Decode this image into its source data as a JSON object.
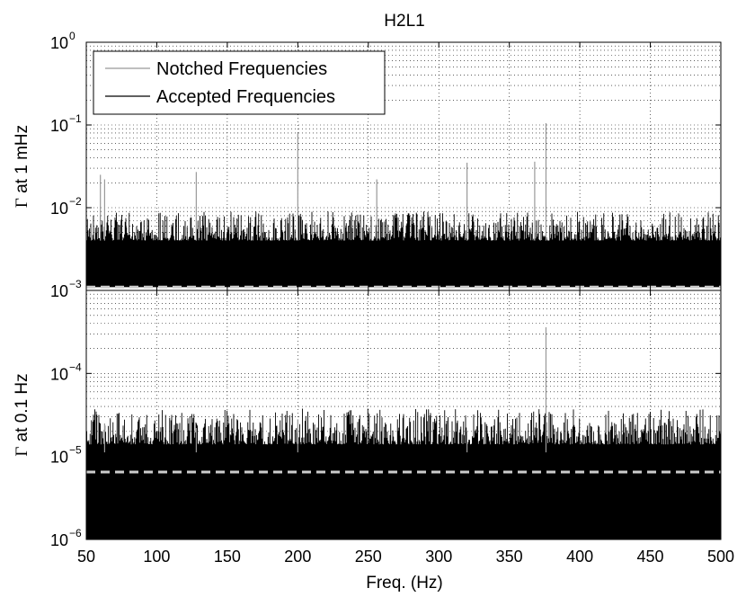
{
  "chart_data": {
    "type": "line",
    "title": "H2L1",
    "xlabel": "Freq. (Hz)",
    "xlim": [
      50,
      500
    ],
    "x_ticks": [
      "50",
      "100",
      "150",
      "200",
      "250",
      "300",
      "350",
      "400",
      "450",
      "500"
    ],
    "legend": {
      "position": "top-left",
      "entries": [
        {
          "label": "Notched Frequencies",
          "color": "#999999"
        },
        {
          "label": "Accepted Frequencies",
          "color": "#000000"
        }
      ]
    },
    "grid": true,
    "panels": [
      {
        "ylabel_symbol": "Γ",
        "ylabel": " at 1 mHz",
        "yscale": "log",
        "ylim": [
          0.001,
          1
        ],
        "y_ticks": [
          {
            "base": "10",
            "exp": "0"
          },
          {
            "base": "10",
            "exp": "−1"
          },
          {
            "base": "10",
            "exp": "−2"
          },
          {
            "base": "10",
            "exp": "−3"
          }
        ],
        "noise_band": {
          "low": 0.0011,
          "typical_high": 0.004,
          "envelope_max": 0.009
        },
        "threshold_dashed": 0.0011,
        "notched_spikes": [
          {
            "x": 60,
            "y": 0.025
          },
          {
            "x": 63,
            "y": 0.022
          },
          {
            "x": 128,
            "y": 0.027
          },
          {
            "x": 200,
            "y": 0.08
          },
          {
            "x": 256,
            "y": 0.022
          },
          {
            "x": 320,
            "y": 0.035
          },
          {
            "x": 368,
            "y": 0.036
          },
          {
            "x": 376,
            "y": 0.105
          }
        ]
      },
      {
        "ylabel_symbol": "Γ",
        "ylabel": " at 0.1 Hz",
        "yscale": "log",
        "ylim": [
          1e-06,
          0.001
        ],
        "y_ticks": [
          {
            "base": "10",
            "exp": "−3"
          },
          {
            "base": "10",
            "exp": "−4"
          },
          {
            "base": "10",
            "exp": "−5"
          },
          {
            "base": "10",
            "exp": "−6"
          }
        ],
        "show_top_tick_label": false,
        "noise_band": {
          "low": 1e-06,
          "typical_high": 1.4e-05,
          "envelope_max": 3.8e-05
        },
        "threshold_dashed": 6.5e-06,
        "notched_spikes": [
          {
            "x": 63,
            "y": 2.5e-05
          },
          {
            "x": 128,
            "y": 2.2e-05
          },
          {
            "x": 200,
            "y": 2.8e-05
          },
          {
            "x": 320,
            "y": 2e-05
          },
          {
            "x": 376,
            "y": 0.00036
          }
        ]
      }
    ]
  }
}
